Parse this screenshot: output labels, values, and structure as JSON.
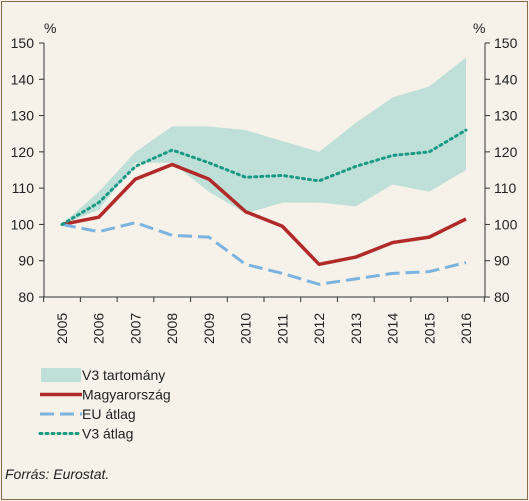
{
  "chart_data": {
    "type": "line",
    "categories": [
      "2005",
      "2006",
      "2007",
      "2008",
      "2009",
      "2010",
      "2011",
      "2012",
      "2013",
      "2014",
      "2015",
      "2016"
    ],
    "unit_left": "%",
    "unit_right": "%",
    "ylim": [
      80,
      150
    ],
    "yticks": [
      80,
      90,
      100,
      110,
      120,
      130,
      140,
      150
    ],
    "band": {
      "name": "V3 tartomány",
      "color": "#bfe0d8",
      "low": [
        100,
        104,
        117,
        117,
        109,
        103,
        106,
        106,
        105,
        111,
        109,
        115
      ],
      "high": [
        100,
        109,
        120,
        127,
        127,
        126,
        123,
        120,
        128,
        135,
        138,
        146
      ]
    },
    "series": [
      {
        "name": "Magyarország",
        "color": "#b02a2a",
        "style": "solid",
        "values": [
          100,
          102,
          112.5,
          116.5,
          112.5,
          103.5,
          99.5,
          89,
          91,
          95,
          96.5,
          101.5
        ]
      },
      {
        "name": "EU átlag",
        "color": "#7ab3e0",
        "style": "dashed",
        "values": [
          100,
          98,
          100.5,
          97,
          96.5,
          89,
          86.5,
          83.5,
          85,
          86.5,
          87,
          89.5
        ]
      },
      {
        "name": "V3 átlag",
        "color": "#1a9a86",
        "style": "dotted",
        "values": [
          100,
          106,
          116,
          120.5,
          117,
          113,
          113.5,
          112,
          116,
          119,
          120,
          126
        ]
      }
    ],
    "grid": false,
    "legend": "bottom-left"
  },
  "source": "Forrás: Eurostat."
}
